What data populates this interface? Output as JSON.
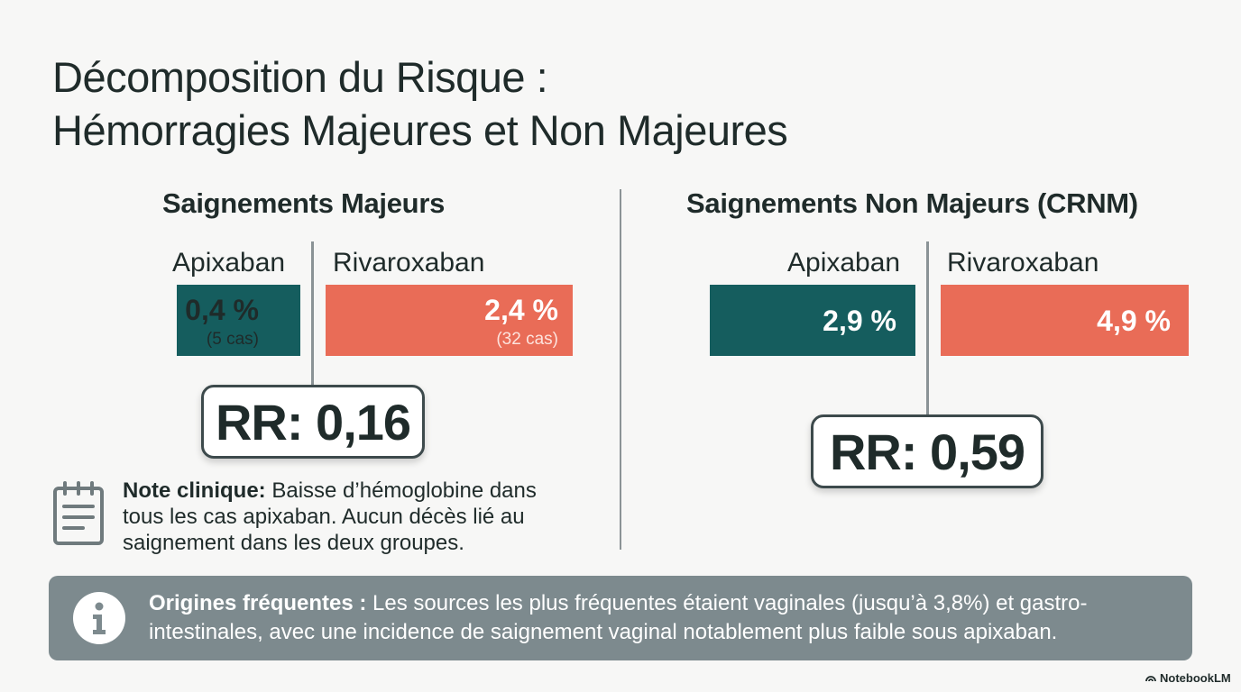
{
  "title": {
    "line1": "Décomposition du Risque :",
    "line2": "Hémorragies Majeures et Non Majeures"
  },
  "chart_data": [
    {
      "type": "bar",
      "title": "Saignements Majeurs",
      "categories": [
        "Apixaban",
        "Rivaroxaban"
      ],
      "values": [
        0.4,
        2.4
      ],
      "unit": "%",
      "value_labels": [
        "0,4 %",
        "2,4 %"
      ],
      "case_labels": [
        "(5 cas)",
        "(32 cas)"
      ],
      "colors": [
        "#155d5e",
        "#e96c57"
      ],
      "rr_label": "RR: 0,16"
    },
    {
      "type": "bar",
      "title": "Saignements Non Majeurs (CRNM)",
      "categories": [
        "Apixaban",
        "Rivaroxaban"
      ],
      "values": [
        2.9,
        4.9
      ],
      "unit": "%",
      "value_labels": [
        "2,9 %",
        "4,9 %"
      ],
      "colors": [
        "#155d5e",
        "#e96c57"
      ],
      "rr_label": "RR: 0,59"
    }
  ],
  "note": {
    "label": "Note clinique:",
    "text": " Baisse d’hémoglobine dans tous les cas apixaban. Aucun décès lié au saignement dans les deux groupes."
  },
  "info": {
    "label": "Origines fréquentes :",
    "text": " Les sources les plus fréquentes étaient vaginales (jusqu’à 3,8%) et gastro-intestinales, avec une incidence de saignement vaginal notablement plus faible sous apixaban."
  },
  "brand": "NotebookLM",
  "icons": {
    "note": "notepad-icon",
    "info": "info-icon",
    "brand": "notebooklm-logo-icon"
  }
}
